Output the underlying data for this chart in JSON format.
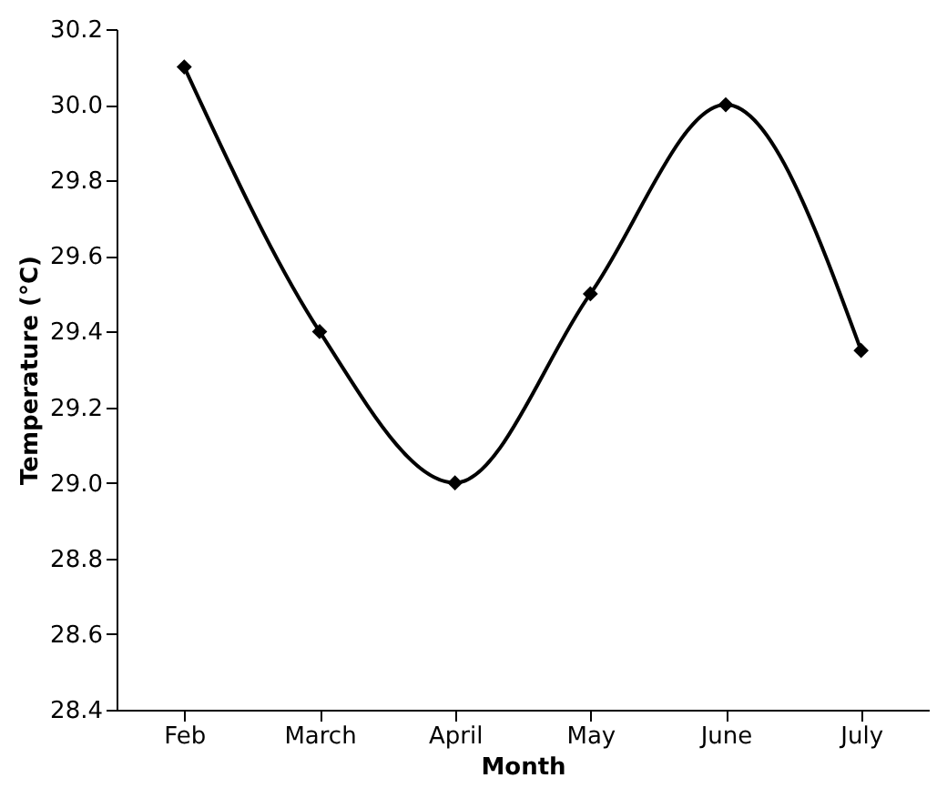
{
  "chart_data": {
    "type": "line",
    "xlabel": "Month",
    "ylabel": "Temperature (°C)",
    "categories": [
      "Feb",
      "March",
      "April",
      "May",
      "June",
      "July"
    ],
    "series": [
      {
        "color": "#000000",
        "values": [
          30.1,
          29.4,
          29.0,
          29.5,
          30.0,
          29.35
        ]
      }
    ],
    "ylim": [
      28.4,
      30.2
    ],
    "yticks": [
      28.4,
      28.6,
      28.8,
      {
        "value": 29,
        "label": "29.0"
      },
      29.2,
      29.4,
      29.6,
      29.8,
      {
        "value": 30,
        "label": "30.0"
      },
      30.2
    ],
    "grid": false,
    "marker": "diamond",
    "line_style": "solid"
  }
}
